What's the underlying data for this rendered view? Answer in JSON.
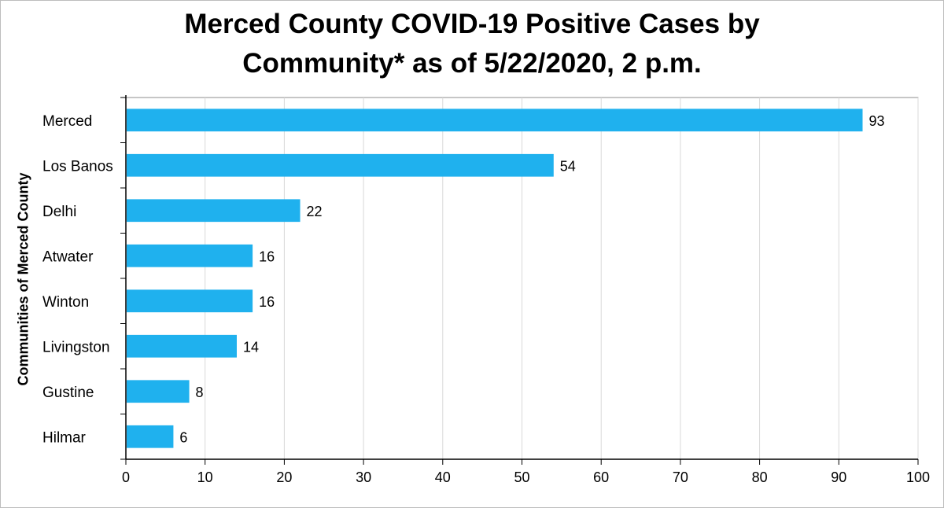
{
  "chart_data": {
    "type": "bar",
    "orientation": "horizontal",
    "title": "Merced County COVID-19 Positive Cases by Community* as of 5/22/2020, 2 p.m.",
    "title_lines": [
      "Merced County COVID-19 Positive Cases by",
      "Community* as of 5/22/2020, 2 p.m."
    ],
    "ylabel": "Communities of Merced County",
    "categories": [
      "Merced",
      "Los Banos",
      "Delhi",
      "Atwater",
      "Winton",
      "Livingston",
      "Gustine",
      "Hilmar"
    ],
    "values": [
      93,
      54,
      22,
      16,
      16,
      14,
      8,
      6
    ],
    "xlim": [
      0,
      100
    ],
    "xticks": [
      0,
      10,
      20,
      30,
      40,
      50,
      60,
      70,
      80,
      90,
      100
    ],
    "grid": "vertical",
    "bar_color": "#1FB1EE",
    "data_labels": true
  }
}
